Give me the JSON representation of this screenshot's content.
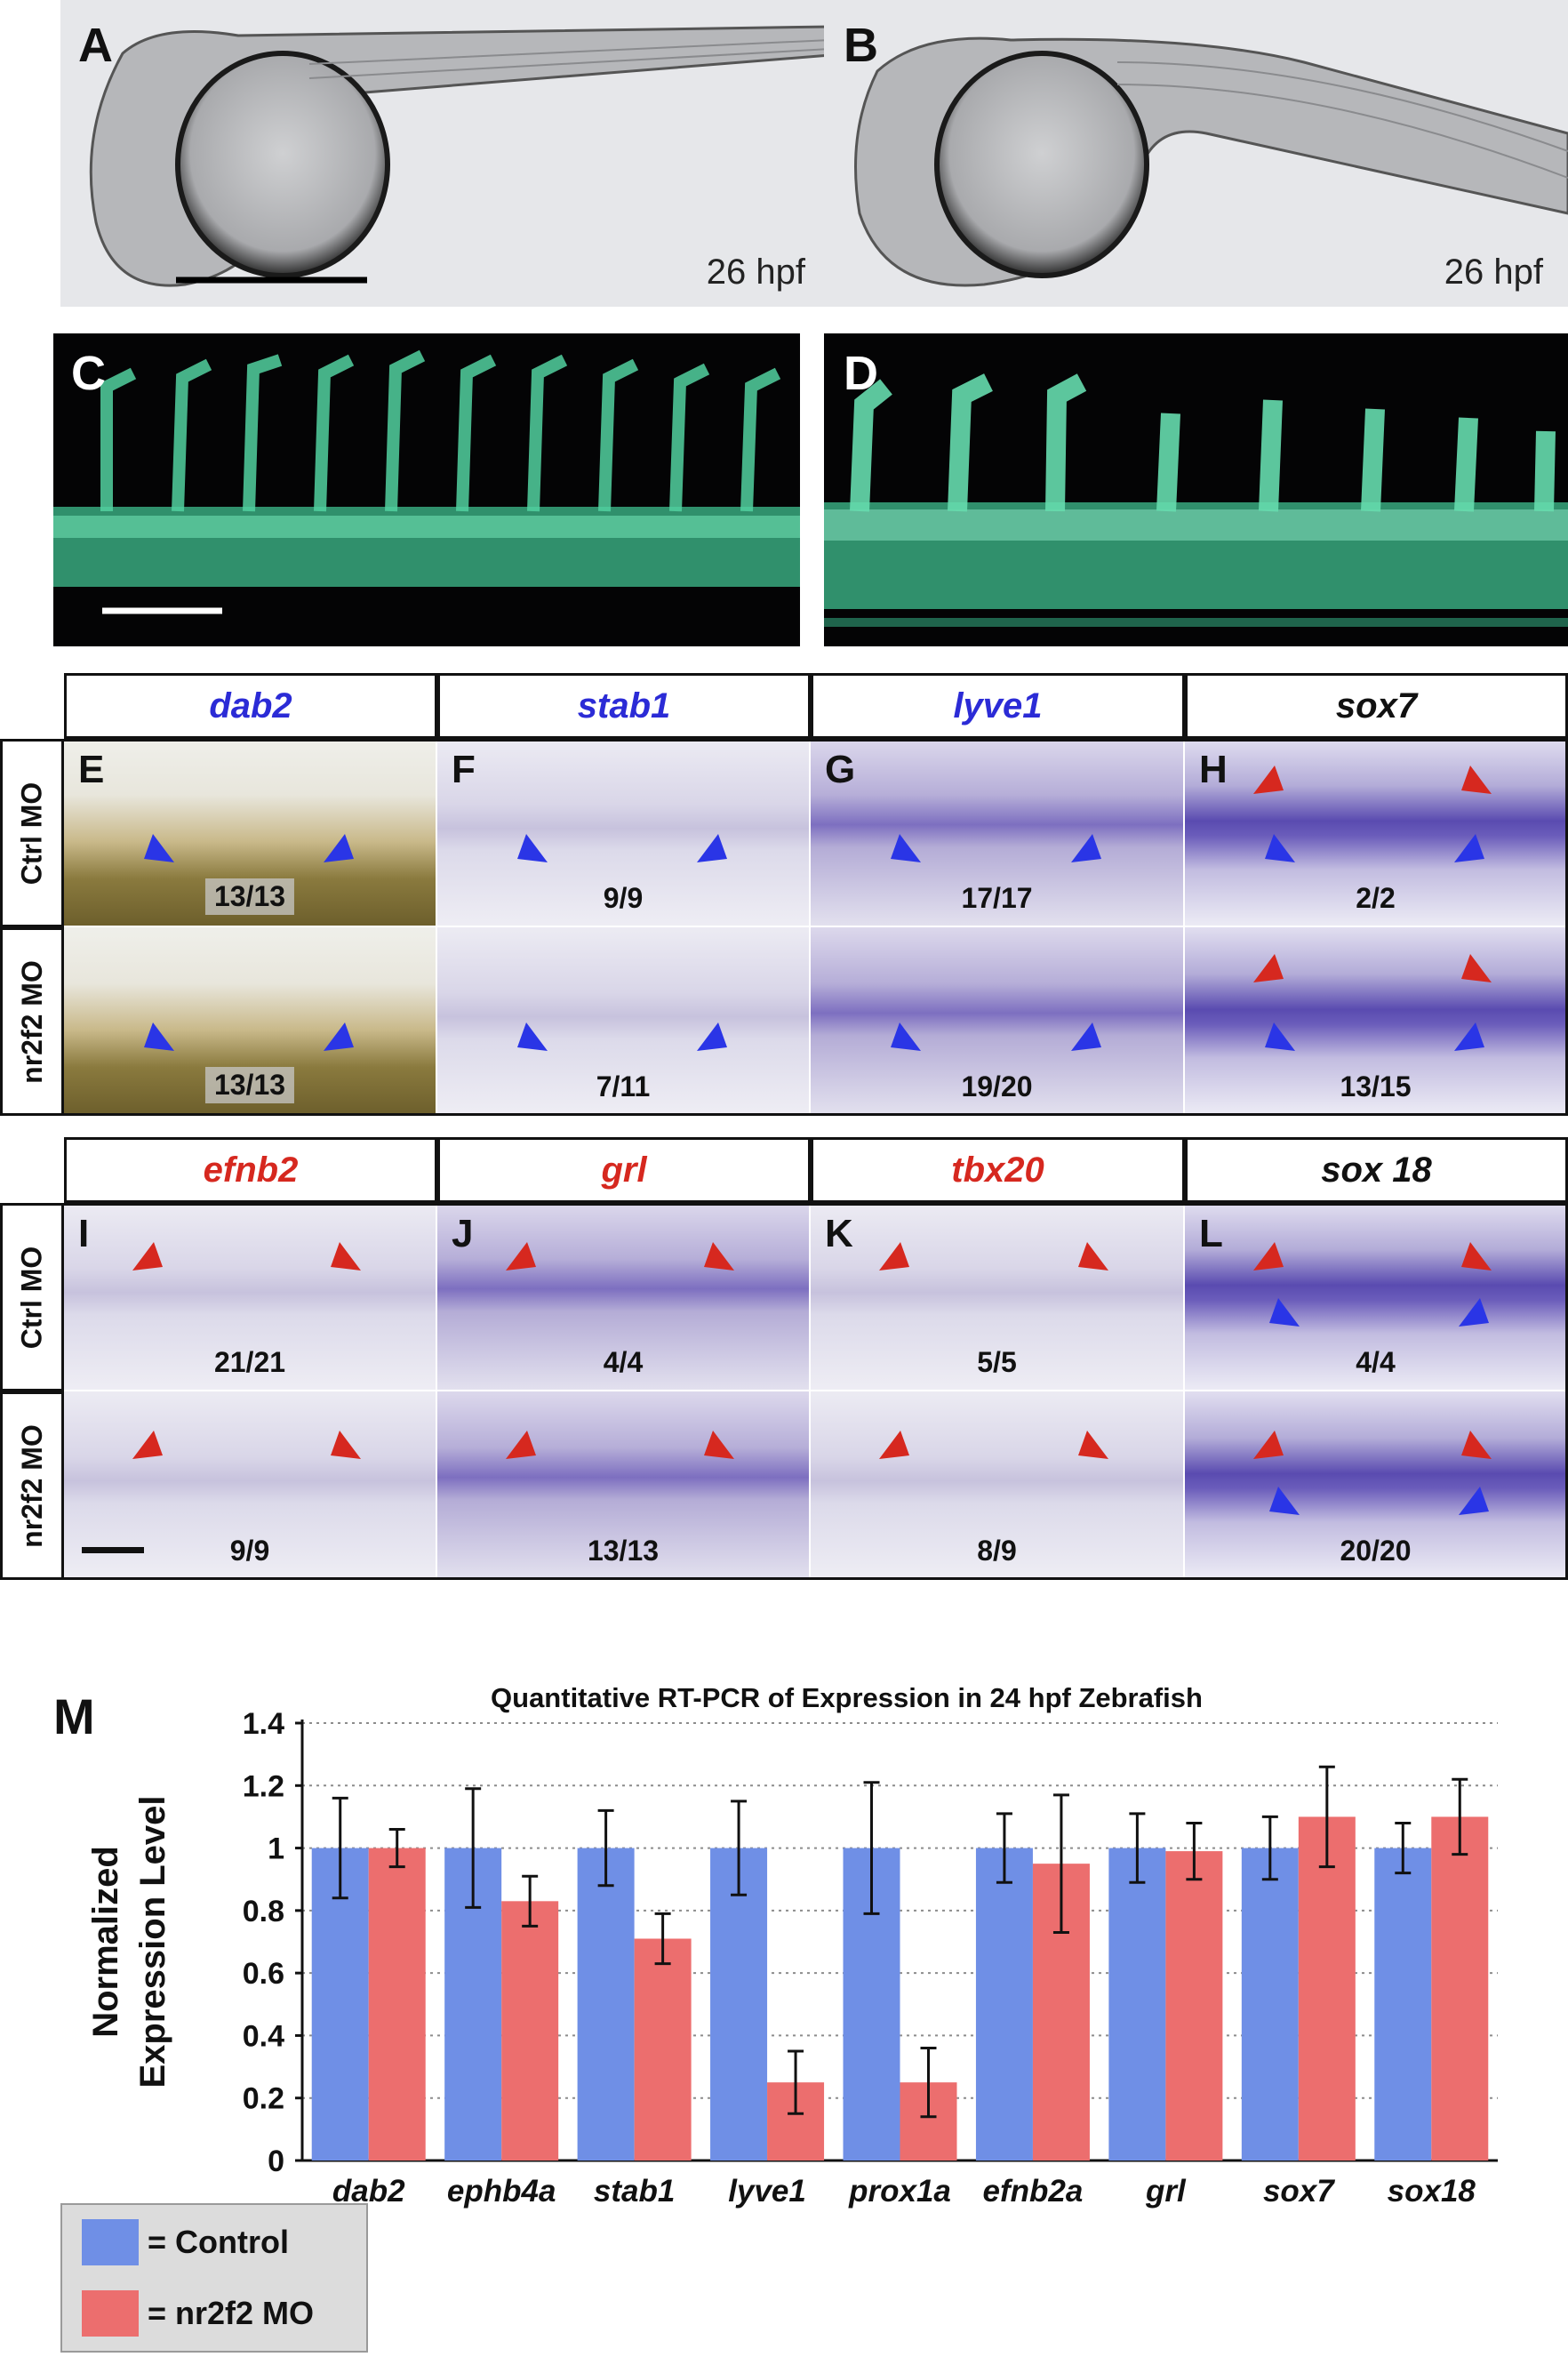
{
  "figure": {
    "panels_top": [
      {
        "letter": "A",
        "hpf": "26 hpf"
      },
      {
        "letter": "B",
        "hpf": "26 hpf"
      },
      {
        "letter": "C"
      },
      {
        "letter": "D"
      }
    ],
    "ish_block1": {
      "headers": [
        {
          "text": "dab2",
          "color": "#2b2bd6"
        },
        {
          "text": "stab1",
          "color": "#2b2bd6"
        },
        {
          "text": "lyve1",
          "color": "#2b2bd6"
        },
        {
          "text": "sox7",
          "color": "#111111"
        }
      ],
      "row_labels": [
        "Ctrl MO",
        "nr2f2 MO"
      ],
      "tiles": [
        [
          {
            "letter": "E",
            "count": "13/13",
            "boxed": true,
            "style": "yellow",
            "arrows": [
              "blue-left",
              "blue-right"
            ]
          },
          {
            "letter": "F",
            "count": "9/9",
            "style": "pale",
            "arrows": [
              "blue-left",
              "blue-right"
            ]
          },
          {
            "letter": "G",
            "count": "17/17",
            "style": "purple",
            "arrows": [
              "blue-left",
              "blue-right"
            ]
          },
          {
            "letter": "H",
            "count": "2/2",
            "style": "sox",
            "arrows": [
              "red-top-left",
              "red-top-right",
              "blue-left",
              "blue-right"
            ]
          }
        ],
        [
          {
            "letter": "",
            "count": "13/13",
            "boxed": true,
            "style": "yellow",
            "arrows": [
              "blue-left",
              "blue-right"
            ]
          },
          {
            "letter": "",
            "count": "7/11",
            "style": "pale",
            "arrows": [
              "blue-left",
              "blue-right"
            ]
          },
          {
            "letter": "",
            "count": "19/20",
            "style": "purple",
            "arrows": [
              "blue-left",
              "blue-right"
            ]
          },
          {
            "letter": "",
            "count": "13/15",
            "style": "sox",
            "arrows": [
              "red-top-left",
              "red-top-right",
              "blue-left",
              "blue-right"
            ]
          }
        ]
      ]
    },
    "ish_block2": {
      "headers": [
        {
          "text": "efnb2",
          "color": "#d6281f"
        },
        {
          "text": "grl",
          "color": "#d6281f"
        },
        {
          "text": "tbx20",
          "color": "#d6281f"
        },
        {
          "text": "sox 18",
          "color": "#111111"
        }
      ],
      "row_labels": [
        "Ctrl MO",
        "nr2f2 MO"
      ],
      "tiles": [
        [
          {
            "letter": "I",
            "count": "21/21",
            "style": "pale"
          },
          {
            "letter": "J",
            "count": "4/4",
            "style": "purple"
          },
          {
            "letter": "K",
            "count": "5/5",
            "style": "pale"
          },
          {
            "letter": "L",
            "count": "4/4",
            "style": "sox"
          }
        ],
        [
          {
            "letter": "",
            "count": "9/9",
            "style": "pale"
          },
          {
            "letter": "",
            "count": "13/13",
            "style": "purple"
          },
          {
            "letter": "",
            "count": "8/9",
            "style": "pale"
          },
          {
            "letter": "",
            "count": "20/20",
            "style": "sox"
          }
        ]
      ]
    },
    "panel_m_letter": "M"
  },
  "chart_data": {
    "type": "bar",
    "title": "Quantitative RT-PCR of Expression in 24 hpf Zebrafish",
    "ylabel_line1": "Normalized",
    "ylabel_line2": "Expression Level",
    "xlabel": "",
    "ylim": [
      0,
      1.4
    ],
    "yticks": [
      "0",
      "0.2",
      "0.4",
      "0.6",
      "0.8",
      "1",
      "1.2",
      "1.4"
    ],
    "grid": true,
    "categories": [
      "dab2",
      "ephb4a",
      "stab1",
      "lyve1",
      "prox1a",
      "efnb2a",
      "grl",
      "sox7",
      "sox18"
    ],
    "series": [
      {
        "name": "= Control",
        "color": "#6f8fe6",
        "values": [
          1,
          1,
          1,
          1,
          1,
          1,
          1,
          1,
          1
        ],
        "errors": [
          0.16,
          0.19,
          0.12,
          0.15,
          0.21,
          0.11,
          0.11,
          0.1,
          0.08
        ]
      },
      {
        "name": "= nr2f2 MO",
        "color": "#ec6e6e",
        "values": [
          1,
          0.83,
          0.71,
          0.25,
          0.25,
          0.95,
          0.99,
          1.1,
          1.1
        ],
        "errors": [
          0.06,
          0.08,
          0.08,
          0.1,
          0.11,
          0.22,
          0.09,
          0.16,
          0.12
        ]
      }
    ],
    "legend_position": "bottom-left"
  }
}
